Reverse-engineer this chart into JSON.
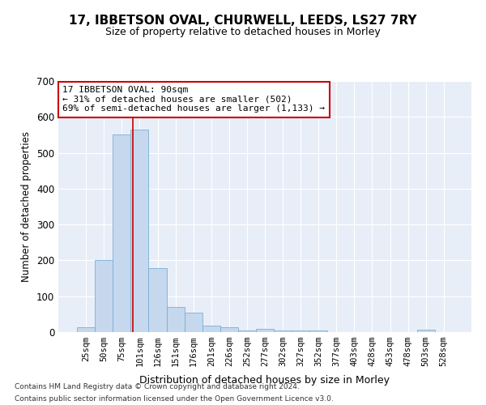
{
  "title": "17, IBBETSON OVAL, CHURWELL, LEEDS, LS27 7RY",
  "subtitle": "Size of property relative to detached houses in Morley",
  "xlabel": "Distribution of detached houses by size in Morley",
  "ylabel": "Number of detached properties",
  "bar_color": "#c5d8ee",
  "bar_edge_color": "#7aafd4",
  "background_color": "#e8eef8",
  "grid_color": "#ffffff",
  "categories": [
    "25sqm",
    "50sqm",
    "75sqm",
    "101sqm",
    "126sqm",
    "151sqm",
    "176sqm",
    "201sqm",
    "226sqm",
    "252sqm",
    "277sqm",
    "302sqm",
    "327sqm",
    "352sqm",
    "377sqm",
    "403sqm",
    "428sqm",
    "453sqm",
    "478sqm",
    "503sqm",
    "528sqm"
  ],
  "values": [
    14,
    200,
    550,
    565,
    178,
    70,
    55,
    18,
    14,
    5,
    10,
    5,
    5,
    5,
    0,
    0,
    0,
    0,
    0,
    7,
    0
  ],
  "ylim": [
    0,
    700
  ],
  "yticks": [
    0,
    100,
    200,
    300,
    400,
    500,
    600,
    700
  ],
  "property_line_x": 2.6,
  "annotation_text": "17 IBBETSON OVAL: 90sqm\n← 31% of detached houses are smaller (502)\n69% of semi-detached houses are larger (1,133) →",
  "annotation_box_color": "#ffffff",
  "annotation_border_color": "#cc0000",
  "footer_line1": "Contains HM Land Registry data © Crown copyright and database right 2024.",
  "footer_line2": "Contains public sector information licensed under the Open Government Licence v3.0."
}
